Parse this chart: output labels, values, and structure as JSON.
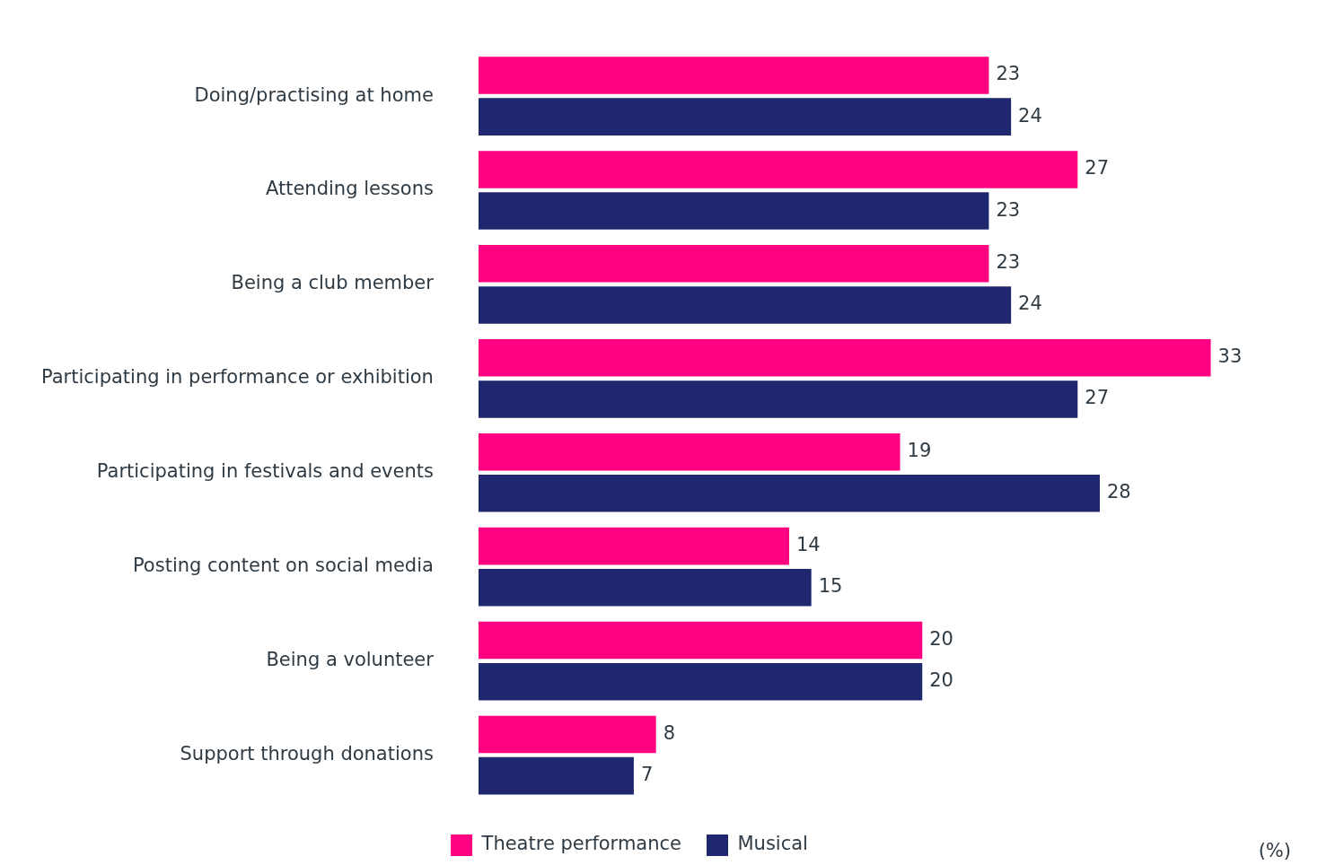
{
  "chart_data": {
    "type": "bar",
    "orientation": "horizontal",
    "categories": [
      "Doing/practising at home",
      "Attending lessons",
      "Being a club member",
      "Participating in performance or exhibition",
      "Participating in festivals and events",
      "Posting content on social media",
      "Being a volunteer",
      "Support through donations"
    ],
    "series": [
      {
        "name": "Theatre performance",
        "color": "#ff0080",
        "values": [
          23,
          27,
          23,
          33,
          19,
          14,
          20,
          8
        ]
      },
      {
        "name": "Musical",
        "color": "#1f286e",
        "values": [
          24,
          23,
          24,
          27,
          28,
          15,
          20,
          7
        ]
      }
    ],
    "data_labels": true,
    "grid": false,
    "legend": "bottom",
    "tick_labels": "y",
    "annotations": [
      "(%)"
    ]
  }
}
